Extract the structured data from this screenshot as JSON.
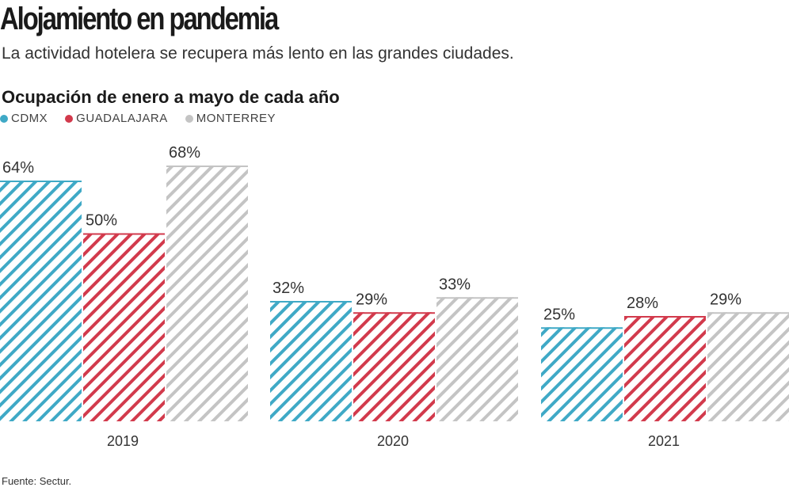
{
  "header": {
    "title": "Alojamiento en pandemia",
    "subtitle": "La actividad hotelera se recupera más lento en las grandes ciudades."
  },
  "footer": {
    "source": "Fuente: Sectur."
  },
  "chart_data": {
    "type": "bar",
    "title": "Ocupación de enero a mayo de cada año",
    "categories": [
      "2019",
      "2020",
      "2021"
    ],
    "unit": "%",
    "series": [
      {
        "name": "CDMX",
        "color": "#3fa9c6",
        "values": [
          64,
          32,
          25
        ]
      },
      {
        "name": "GUADALAJARA",
        "color": "#d23a4c",
        "values": [
          50,
          29,
          28
        ]
      },
      {
        "name": "MONTERREY",
        "color": "#c4c4c4",
        "values": [
          68,
          33,
          29
        ]
      }
    ],
    "ylim": [
      0,
      70
    ],
    "fill": "diagonal-hatch",
    "grid": false,
    "legend": "top-left"
  }
}
